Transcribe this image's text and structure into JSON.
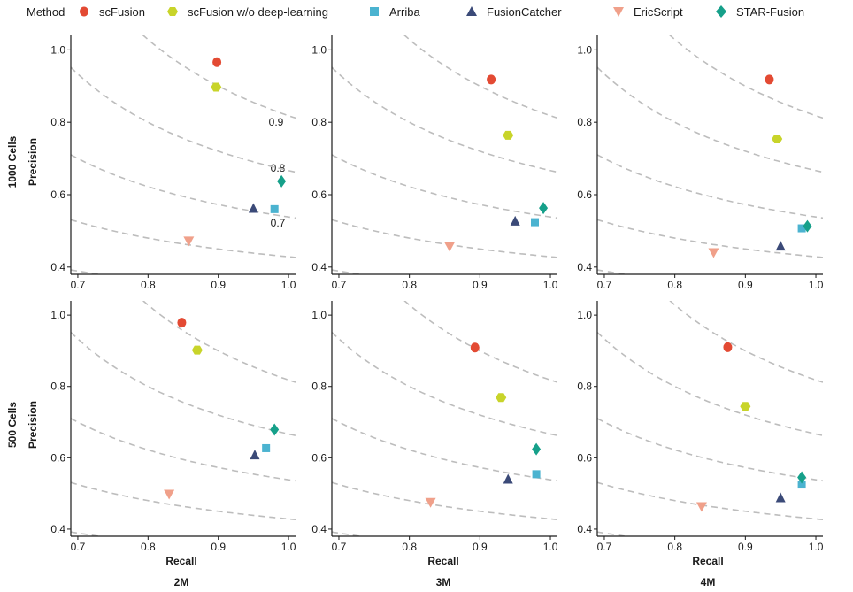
{
  "legend": {
    "title": "Method",
    "items": [
      {
        "label": "scFusion",
        "color": "#e34a33",
        "icon": "circle-icon"
      },
      {
        "label": "scFusion w/o deep-learning",
        "color": "#c8d42a",
        "icon": "hexagon-icon"
      },
      {
        "label": "Arriba",
        "color": "#4bb3d0",
        "icon": "square-icon"
      },
      {
        "label": "FusionCatcher",
        "color": "#3b4a78",
        "icon": "triangle-up-icon"
      },
      {
        "label": "EricScript",
        "color": "#f0a08a",
        "icon": "triangle-down-icon"
      },
      {
        "label": "STAR-Fusion",
        "color": "#16a08a",
        "icon": "diamond-icon"
      }
    ]
  },
  "labels": {
    "row1": "1000 Cells",
    "row2": "500 Cells",
    "ylabel": "Precision",
    "xlabel": "Recall",
    "col1": "2M",
    "col2": "3M",
    "col3": "4M",
    "f1_09": "0.9",
    "f1_08": "0.8",
    "f1_07": "0.7"
  },
  "chart_data": {
    "type": "scatter",
    "xlim": [
      0.69,
      1.01
    ],
    "ylim": [
      0.38,
      1.04
    ],
    "xticks": [
      "0.7",
      "0.8",
      "0.9",
      "1.0"
    ],
    "yticks": [
      "0.4",
      "0.6",
      "0.8",
      "1.0"
    ],
    "iso_f1_levels": [
      0.9,
      0.8,
      0.7,
      0.6,
      0.5
    ],
    "iso_f1_curve_labels": [
      "0.9",
      "0.8",
      "0.7"
    ],
    "rows": [
      "1000 Cells",
      "500 Cells"
    ],
    "columns": [
      "2M",
      "3M",
      "4M"
    ],
    "series_names": [
      "scFusion",
      "scFusion w/o deep-learning",
      "Arriba",
      "FusionCatcher",
      "EricScript",
      "STAR-Fusion"
    ],
    "panels": [
      {
        "row": "1000 Cells",
        "column": "2M",
        "points": [
          [
            0.898,
            0.966
          ],
          [
            0.897,
            0.897
          ],
          [
            0.98,
            0.56
          ],
          [
            0.95,
            0.562
          ],
          [
            0.858,
            0.472
          ],
          [
            0.99,
            0.637
          ]
        ]
      },
      {
        "row": "1000 Cells",
        "column": "3M",
        "points": [
          [
            0.916,
            0.918
          ],
          [
            0.94,
            0.764
          ],
          [
            0.978,
            0.524
          ],
          [
            0.95,
            0.527
          ],
          [
            0.857,
            0.457
          ],
          [
            0.99,
            0.563
          ]
        ]
      },
      {
        "row": "1000 Cells",
        "column": "4M",
        "points": [
          [
            0.934,
            0.918
          ],
          [
            0.945,
            0.754
          ],
          [
            0.98,
            0.507
          ],
          [
            0.95,
            0.458
          ],
          [
            0.855,
            0.44
          ],
          [
            0.988,
            0.513
          ]
        ]
      },
      {
        "row": "500 Cells",
        "column": "2M",
        "points": [
          [
            0.848,
            0.979
          ],
          [
            0.87,
            0.902
          ],
          [
            0.968,
            0.627
          ],
          [
            0.952,
            0.608
          ],
          [
            0.83,
            0.498
          ],
          [
            0.98,
            0.679
          ]
        ]
      },
      {
        "row": "500 Cells",
        "column": "3M",
        "points": [
          [
            0.893,
            0.909
          ],
          [
            0.93,
            0.769
          ],
          [
            0.98,
            0.554
          ],
          [
            0.94,
            0.54
          ],
          [
            0.83,
            0.475
          ],
          [
            0.98,
            0.624
          ]
        ]
      },
      {
        "row": "500 Cells",
        "column": "4M",
        "points": [
          [
            0.875,
            0.91
          ],
          [
            0.9,
            0.744
          ],
          [
            0.98,
            0.525
          ],
          [
            0.95,
            0.488
          ],
          [
            0.838,
            0.463
          ],
          [
            0.98,
            0.545
          ]
        ]
      }
    ]
  }
}
